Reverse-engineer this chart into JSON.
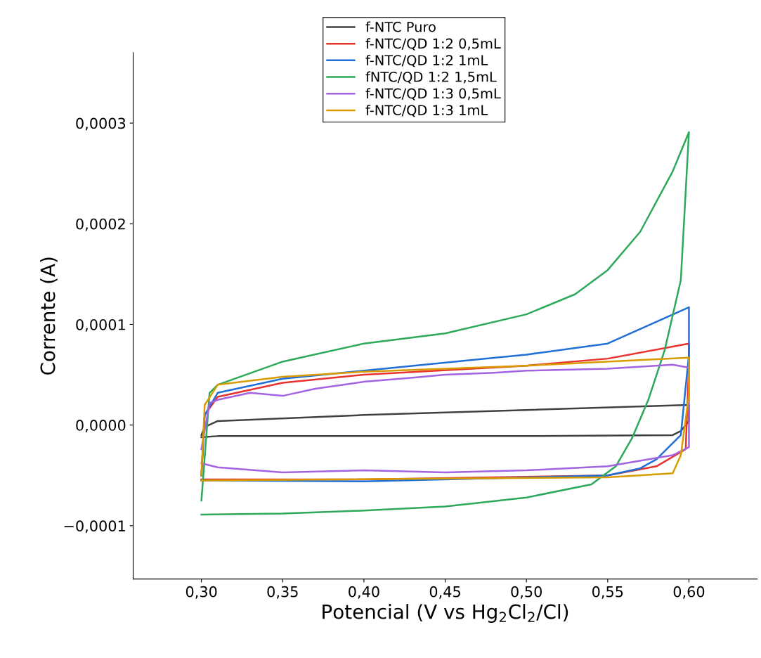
{
  "chart_data": {
    "type": "line",
    "xlabel": "Potencial (V vs Hg$_{2}$Cl$_{2}$/Cl)",
    "ylabel": "Corrente (A)",
    "xlim": [
      0.258,
      0.642
    ],
    "ylim": [
      -0.000153,
      0.00037
    ],
    "xticks": [
      {
        "value": 0.3,
        "label": "0,30"
      },
      {
        "value": 0.35,
        "label": "0,35"
      },
      {
        "value": 0.4,
        "label": "0,40"
      },
      {
        "value": 0.45,
        "label": "0,45"
      },
      {
        "value": 0.5,
        "label": "0,50"
      },
      {
        "value": 0.55,
        "label": "0,55"
      },
      {
        "value": 0.6,
        "label": "0,60"
      }
    ],
    "yticks": [
      {
        "value": -0.0001,
        "label": "−0,0001"
      },
      {
        "value": 0.0,
        "label": "0,0000"
      },
      {
        "value": 0.0001,
        "label": "0,0001"
      },
      {
        "value": 0.0002,
        "label": "0,0002"
      },
      {
        "value": 0.0003,
        "label": "0,0003"
      }
    ],
    "legend": "top",
    "grid": false,
    "marker": "none",
    "line_style": "solid",
    "series": [
      {
        "name": "f-NTC Puro",
        "color": "#404040",
        "x": [
          0.3,
          0.302,
          0.31,
          0.4,
          0.5,
          0.6,
          0.6,
          0.595,
          0.59,
          0.5,
          0.4,
          0.31,
          0.3
        ],
        "values": [
          -1e-05,
          -2e-06,
          4e-06,
          1e-05,
          1.5e-05,
          2e-05,
          4e-06,
          -6e-06,
          -1e-05,
          -1.1e-05,
          -1.1e-05,
          -1.1e-05,
          -1.2e-05
        ]
      },
      {
        "name": "f-NTC/QD 1:2 0,5mL",
        "color": "#e8322e",
        "x": [
          0.3,
          0.302,
          0.31,
          0.35,
          0.4,
          0.5,
          0.55,
          0.6,
          0.6,
          0.598,
          0.58,
          0.55,
          0.4,
          0.3
        ],
        "values": [
          -5e-05,
          1e-05,
          2.8e-05,
          4.2e-05,
          5e-05,
          5.9e-05,
          6.6e-05,
          8.1e-05,
          6e-05,
          -2.4e-05,
          -4.1e-05,
          -5e-05,
          -5.4e-05,
          -5.4e-05
        ]
      },
      {
        "name": "f-NTC/QD 1:2 1mL",
        "color": "#1f6fd6",
        "x": [
          0.3,
          0.302,
          0.31,
          0.35,
          0.4,
          0.5,
          0.55,
          0.6,
          0.6,
          0.595,
          0.58,
          0.57,
          0.55,
          0.4,
          0.3
        ],
        "values": [
          -5e-05,
          1e-05,
          3.2e-05,
          4.6e-05,
          5.4e-05,
          7e-05,
          8.1e-05,
          0.000117,
          7e-05,
          -1e-05,
          -3.4e-05,
          -4.3e-05,
          -5e-05,
          -5.6e-05,
          -5.5e-05
        ]
      },
      {
        "name": "fNTC/QD 1:2 1,5mL",
        "color": "#2ea85a",
        "x": [
          0.3,
          0.305,
          0.31,
          0.35,
          0.4,
          0.45,
          0.5,
          0.53,
          0.55,
          0.57,
          0.59,
          0.6,
          0.595,
          0.585,
          0.575,
          0.565,
          0.555,
          0.54,
          0.5,
          0.45,
          0.4,
          0.35,
          0.3
        ],
        "values": [
          -7.5e-05,
          3.2e-05,
          4e-05,
          6.3e-05,
          8.1e-05,
          9.1e-05,
          0.00011,
          0.00013,
          0.000154,
          0.000192,
          0.000252,
          0.000291,
          0.000144,
          7.4e-05,
          2.5e-05,
          -1.3e-05,
          -4.1e-05,
          -5.9e-05,
          -7.2e-05,
          -8.1e-05,
          -8.5e-05,
          -8.8e-05,
          -8.9e-05
        ]
      },
      {
        "name": "f-NTC/QD 1:3 0,5mL",
        "color": "#a463e0",
        "x": [
          0.3,
          0.305,
          0.31,
          0.33,
          0.35,
          0.37,
          0.4,
          0.43,
          0.45,
          0.48,
          0.5,
          0.55,
          0.59,
          0.6,
          0.6,
          0.59,
          0.55,
          0.5,
          0.45,
          0.4,
          0.35,
          0.31,
          0.3
        ],
        "values": [
          -2.4e-05,
          2.2e-05,
          2.5e-05,
          3.2e-05,
          2.9e-05,
          3.6e-05,
          4.3e-05,
          4.7e-05,
          5e-05,
          5.2e-05,
          5.4e-05,
          5.6e-05,
          6e-05,
          5.7e-05,
          -2.2e-05,
          -3e-05,
          -4.1e-05,
          -4.5e-05,
          -4.7e-05,
          -4.5e-05,
          -4.7e-05,
          -4.2e-05,
          -3.8e-05
        ]
      },
      {
        "name": "f-NTC/QD 1:3 1mL",
        "color": "#d99c00",
        "x": [
          0.3,
          0.302,
          0.31,
          0.35,
          0.4,
          0.5,
          0.6,
          0.6,
          0.595,
          0.59,
          0.55,
          0.3
        ],
        "values": [
          -5e-05,
          2e-05,
          4e-05,
          4.8e-05,
          5.3e-05,
          5.9e-05,
          6.7e-05,
          3e-05,
          -3e-05,
          -4.8e-05,
          -5.2e-05,
          -5.5e-05
        ]
      }
    ]
  }
}
